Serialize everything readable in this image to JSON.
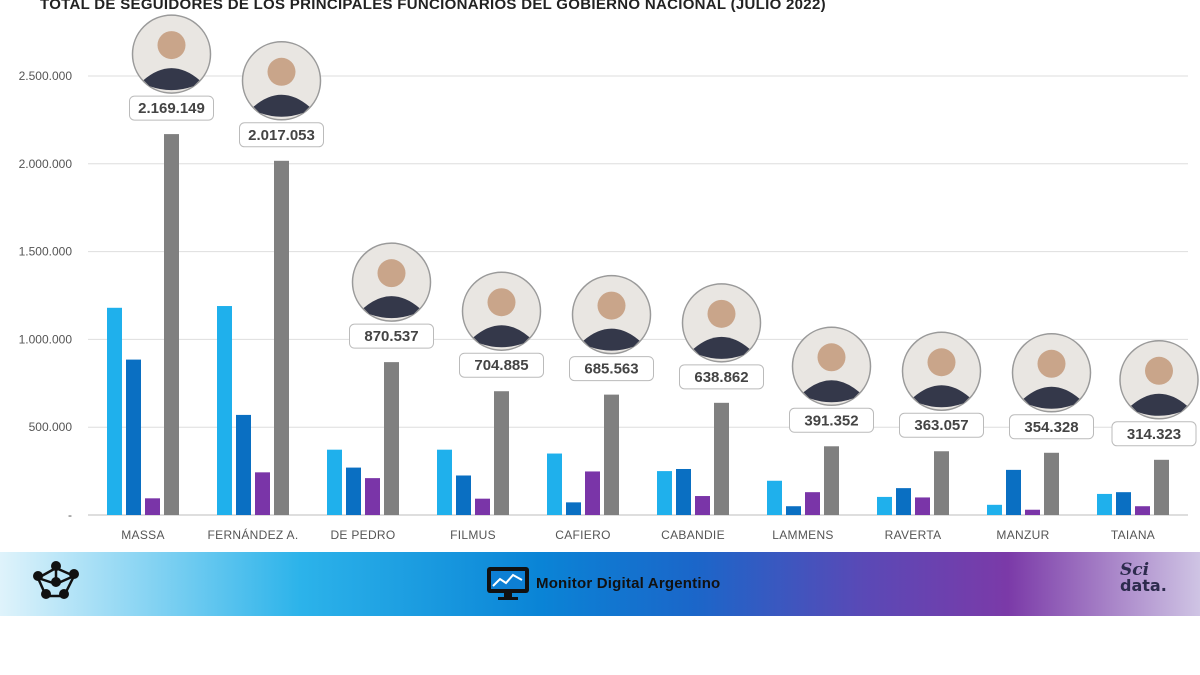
{
  "chart_data": {
    "type": "bar",
    "title": "TOTAL DE SEGUIDORES DE LOS PRINCIPALES FUNCIONARIOS DEL GOBIERNO NACIONAL (JULIO 2022)",
    "categories": [
      "MASSA",
      "FERNÁNDEZ A.",
      "DE PEDRO",
      "FILMUS",
      "CAFIERO",
      "CABANDIE",
      "LAMMENS",
      "RAVERTA",
      "MANZUR",
      "TAIANA"
    ],
    "series": [
      {
        "color": "#1fb0ec",
        "values": [
          1180000,
          1190000,
          372000,
          372000,
          350000,
          250000,
          195000,
          103000,
          58000,
          120000
        ]
      },
      {
        "color": "#0a6fc2",
        "values": [
          885000,
          570000,
          270000,
          225000,
          72000,
          262000,
          50000,
          153000,
          257000,
          130000
        ]
      },
      {
        "color": "#7a35a8",
        "values": [
          95000,
          243000,
          210000,
          93000,
          248000,
          108000,
          130000,
          100000,
          30000,
          50000
        ]
      },
      {
        "color": "#808080",
        "values": [
          2169149,
          2017053,
          870537,
          704885,
          685563,
          638862,
          391352,
          363057,
          354328,
          314323
        ]
      }
    ],
    "total_labels": [
      "2.169.149",
      "2.017.053",
      "870.537",
      "704.885",
      "685.563",
      "638.862",
      "391.352",
      "363.057",
      "354.328",
      "314.323"
    ],
    "y_ticks": [
      0,
      500000,
      1000000,
      1500000,
      2000000,
      2500000
    ],
    "y_tick_labels": [
      "-",
      "500.000",
      "1.000.000",
      "1.500.000",
      "2.000.000",
      "2.500.000"
    ],
    "ylim": [
      0,
      2500000
    ],
    "grid": true,
    "legend": "none",
    "xlabel": "",
    "ylabel": ""
  },
  "footer": {
    "brand": "Monitor Digital Argentino",
    "logo_top": "Sci",
    "logo_bottom": "data.",
    "left_icon": "network-people-icon",
    "brand_icon": "monitor-chart-icon"
  },
  "photo_icon": "person-avatar-icon"
}
